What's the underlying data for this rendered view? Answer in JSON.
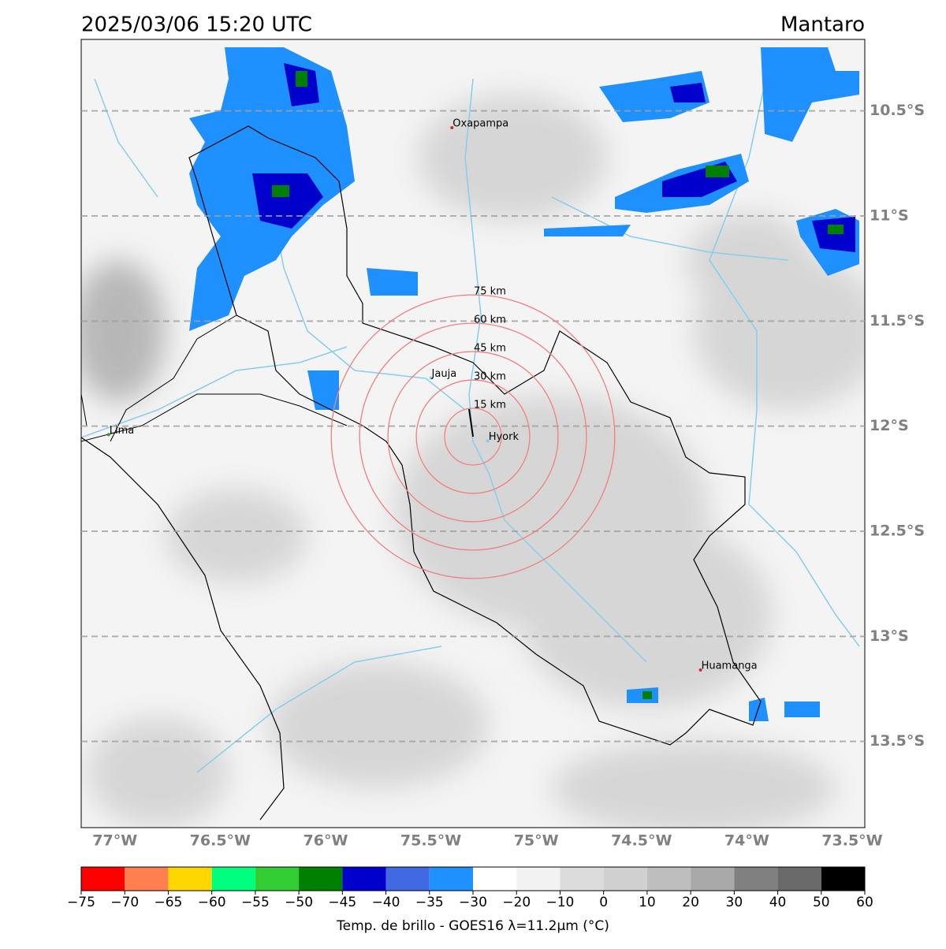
{
  "title": "2025/03/06 15:20 UTC",
  "region": "Mantaro",
  "map": {
    "xlim": [
      -77.16,
      -73.44
    ],
    "ylim": [
      -13.91,
      -10.16
    ],
    "xticks": [
      {
        "value": -77,
        "label": "77°W"
      },
      {
        "value": -76.5,
        "label": "76.5°W"
      },
      {
        "value": -76,
        "label": "76°W"
      },
      {
        "value": -75.5,
        "label": "75.5°W"
      },
      {
        "value": -75,
        "label": "75°W"
      },
      {
        "value": -74.5,
        "label": "74.5°W"
      },
      {
        "value": -74,
        "label": "74°W"
      },
      {
        "value": -73.5,
        "label": "73.5°W"
      }
    ],
    "yticks": [
      {
        "value": -10.5,
        "label": "10.5°S"
      },
      {
        "value": -11,
        "label": "11°S"
      },
      {
        "value": -11.5,
        "label": "11.5°S"
      },
      {
        "value": -12,
        "label": "12°S"
      },
      {
        "value": -12.5,
        "label": "12.5°S"
      },
      {
        "value": -13,
        "label": "13°S"
      },
      {
        "value": -13.5,
        "label": "13.5°S"
      }
    ],
    "grid": true,
    "cities": [
      {
        "name": "Oxapampa",
        "lon": -75.4,
        "lat": -10.58,
        "color": "#d62728"
      },
      {
        "name": "Jauja",
        "lon": -75.5,
        "lat": -11.77,
        "color": "#87ceeb"
      },
      {
        "name": "Hyork",
        "lon": -75.23,
        "lat": -12.07,
        "color": "#87ceeb"
      },
      {
        "name": "Lima",
        "lon": -77.03,
        "lat": -12.04,
        "color": "#2ca02c"
      },
      {
        "name": "Huamanga",
        "lon": -74.22,
        "lat": -13.16,
        "color": "#d62728"
      }
    ],
    "rings": {
      "center_lon": -75.3,
      "center_lat": -12.05,
      "color": "#f08080",
      "items": [
        {
          "radius_km": 15,
          "label": "15 km"
        },
        {
          "radius_km": 30,
          "label": "30 km"
        },
        {
          "radius_km": 45,
          "label": "45 km"
        },
        {
          "radius_km": 60,
          "label": "60 km"
        },
        {
          "radius_km": 75,
          "label": "75 km"
        }
      ]
    }
  },
  "colorbar": {
    "label": "Temp. de brillo - GOES16 λ=11.2μm (°C)",
    "ticks": [
      {
        "value": -75,
        "label": "−75"
      },
      {
        "value": -70,
        "label": "−70"
      },
      {
        "value": -65,
        "label": "−65"
      },
      {
        "value": -60,
        "label": "−60"
      },
      {
        "value": -55,
        "label": "−55"
      },
      {
        "value": -50,
        "label": "−50"
      },
      {
        "value": -45,
        "label": "−45"
      },
      {
        "value": -40,
        "label": "−40"
      },
      {
        "value": -35,
        "label": "−35"
      },
      {
        "value": -30,
        "label": "−30"
      },
      {
        "value": -20,
        "label": "−20"
      },
      {
        "value": -10,
        "label": "−10"
      },
      0,
      10,
      20,
      30,
      40,
      50,
      60
    ],
    "colors": [
      "#ff0000",
      "#ff7f50",
      "#ffd700",
      "#00ff7f",
      "#32cd32",
      "#008000",
      "#0000cd",
      "#4169e1",
      "#1e90ff",
      "#ffffff",
      "#f2f2f2",
      "#dcdcdc",
      "#d0d0d0",
      "#bebebe",
      "#a9a9a9",
      "#808080",
      "#696969",
      "#000000"
    ]
  }
}
